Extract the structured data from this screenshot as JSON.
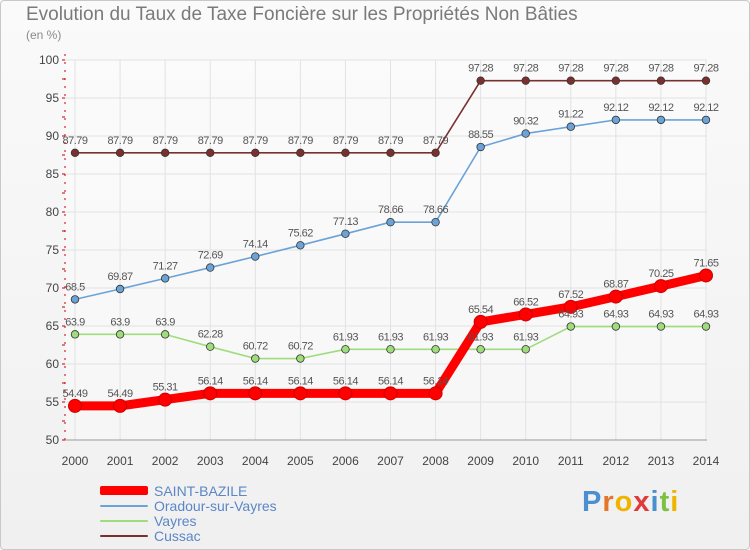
{
  "chart_data": {
    "type": "line",
    "title": "Evolution du Taux de Taxe Foncière sur les Propriétés Non Bâties",
    "subtitle": "(en %)",
    "xlabel": "",
    "ylabel": "",
    "categories": [
      "2000",
      "2001",
      "2002",
      "2003",
      "2004",
      "2005",
      "2006",
      "2007",
      "2008",
      "2009",
      "2010",
      "2011",
      "2012",
      "2013",
      "2014"
    ],
    "ylim": [
      50,
      100
    ],
    "yticks": [
      50,
      55,
      60,
      65,
      70,
      75,
      80,
      85,
      90,
      95,
      100
    ],
    "grid": true,
    "legend_position": "bottom-left",
    "series": [
      {
        "name": "SAINT-BAZILE",
        "color": "#ff0000",
        "values": [
          54.49,
          54.49,
          55.31,
          56.14,
          56.14,
          56.14,
          56.14,
          56.14,
          56.14,
          65.54,
          66.52,
          67.52,
          68.87,
          70.25,
          71.65
        ],
        "labels": [
          "54.49",
          "54.49",
          "55.31",
          "56.14",
          "56.14",
          "56.14",
          "56.14",
          "56.14",
          "56.14",
          "65.54",
          "66.52",
          "67.52",
          "68.87",
          "70.25",
          "71.65"
        ]
      },
      {
        "name": "Oradour-sur-Vayres",
        "color": "#6ba3d6",
        "values": [
          68.5,
          69.87,
          71.27,
          72.69,
          74.14,
          75.62,
          77.13,
          78.66,
          78.66,
          88.55,
          90.32,
          91.22,
          92.12,
          92.12,
          92.12
        ],
        "labels": [
          "68.5",
          "69.87",
          "71.27",
          "72.69",
          "74.14",
          "75.62",
          "77.13",
          "78.66",
          "78.66",
          "88.55",
          "90.32",
          "91.22",
          "92.12",
          "92.12",
          "92.12"
        ]
      },
      {
        "name": "Vayres",
        "color": "#9fdc7b",
        "values": [
          63.9,
          63.9,
          63.9,
          62.28,
          60.72,
          60.72,
          61.93,
          61.93,
          61.93,
          61.93,
          61.93,
          64.93,
          64.93,
          64.93,
          64.93
        ],
        "labels": [
          "63.9",
          "63.9",
          "63.9",
          "62.28",
          "60.72",
          "60.72",
          "61.93",
          "61.93",
          "61.93",
          "61.93",
          "61.93",
          "64.93",
          "64.93",
          "64.93",
          "64.93"
        ]
      },
      {
        "name": "Cussac",
        "color": "#7b3030",
        "values": [
          87.79,
          87.79,
          87.79,
          87.79,
          87.79,
          87.79,
          87.79,
          87.79,
          87.79,
          97.28,
          97.28,
          97.28,
          97.28,
          97.28,
          97.28
        ],
        "labels": [
          "87.79",
          "87.79",
          "87.79",
          "87.79",
          "87.79",
          "87.79",
          "87.79",
          "87.79",
          "87.79",
          "97.28",
          "97.28",
          "97.28",
          "97.28",
          "97.28",
          "97.28"
        ]
      }
    ]
  },
  "logo": {
    "text": "Proxiti"
  }
}
